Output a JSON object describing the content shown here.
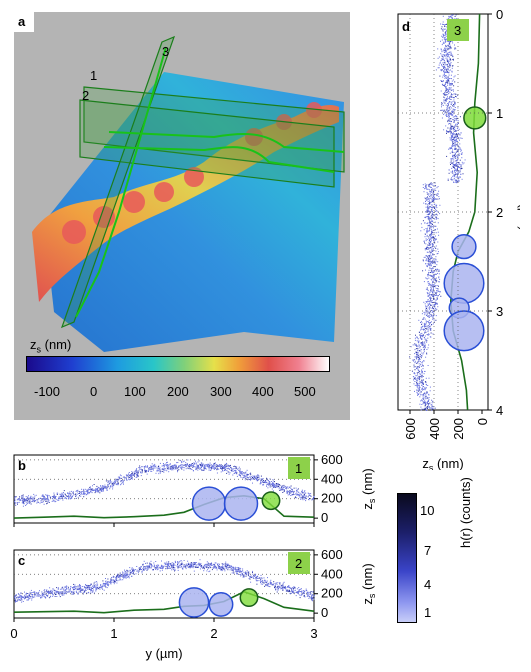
{
  "figure": {
    "panel_a": {
      "letter": "a",
      "plane_labels": [
        "1",
        "2",
        "3"
      ],
      "colorbar_label": "z_s (nm)",
      "colorbar_ticks": [
        "-100",
        "0",
        "100",
        "200",
        "300",
        "400",
        "500"
      ],
      "colorbar_colors": [
        "#1a0a8c",
        "#1f3fd0",
        "#1e9be0",
        "#29c6c8",
        "#7fd07a",
        "#e6e04a",
        "#f0a03a",
        "#e0504a",
        "#f08090",
        "#ffffff"
      ]
    },
    "panel_b": {
      "letter": "b",
      "badge": "1"
    },
    "panel_c": {
      "letter": "c",
      "badge": "2"
    },
    "panel_d": {
      "letter": "d",
      "badge": "3"
    },
    "colorbar_h": {
      "label": "h(r) (counts)",
      "ticks": [
        "10",
        "7",
        "4",
        "1"
      ]
    },
    "accent": {
      "badge_green": "#8dd14a",
      "curve_green": "#1b6e1b",
      "circle_blue": "#aab4f0",
      "circle_edge": "#2a4fd6",
      "green_circle": "#7fdc3a"
    }
  },
  "chart_data": [
    {
      "type": "scatter",
      "panel": "b",
      "xlabel": "y (µm)",
      "ylabel": "z_s (nm)",
      "xlim": [
        0,
        3
      ],
      "ylim": [
        -50,
        650
      ],
      "y_ticks": [
        "600",
        "400",
        "200",
        "0"
      ],
      "x_ticks": [
        "0",
        "1",
        "2",
        "3"
      ],
      "profile": {
        "x": [
          0,
          0.3,
          0.6,
          0.9,
          1.2,
          1.5,
          1.7,
          1.9,
          2.1,
          2.3,
          2.5,
          2.7,
          3.0
        ],
        "y": [
          0,
          10,
          20,
          5,
          15,
          30,
          60,
          140,
          210,
          230,
          200,
          20,
          10
        ]
      },
      "circles": [
        {
          "x": 1.95,
          "y": 150,
          "r": 170,
          "kind": "blue"
        },
        {
          "x": 2.27,
          "y": 150,
          "r": 170,
          "kind": "blue"
        },
        {
          "x": 2.57,
          "y": 180,
          "r": 90,
          "kind": "green"
        }
      ],
      "band_center": [
        180,
        220,
        300,
        500,
        550,
        520,
        350,
        200
      ]
    },
    {
      "type": "scatter",
      "panel": "c",
      "xlabel": "y (µm)",
      "ylabel": "z_s (nm)",
      "xlim": [
        0,
        3
      ],
      "ylim": [
        -50,
        650
      ],
      "y_ticks": [
        "600",
        "400",
        "200",
        "0"
      ],
      "x_ticks": [
        "0",
        "1",
        "2",
        "3"
      ],
      "profile": {
        "x": [
          0,
          0.3,
          0.6,
          0.9,
          1.2,
          1.5,
          1.7,
          1.9,
          2.1,
          2.3,
          2.5,
          2.7,
          3.0
        ],
        "y": [
          10,
          15,
          20,
          5,
          30,
          40,
          70,
          80,
          120,
          220,
          150,
          60,
          20
        ]
      },
      "circles": [
        {
          "x": 1.8,
          "y": 110,
          "r": 150,
          "kind": "blue"
        },
        {
          "x": 2.07,
          "y": 90,
          "r": 120,
          "kind": "blue"
        },
        {
          "x": 2.35,
          "y": 160,
          "r": 90,
          "kind": "green"
        }
      ],
      "band_center": [
        160,
        220,
        280,
        480,
        500,
        480,
        300,
        180
      ]
    },
    {
      "type": "scatter",
      "panel": "d",
      "xlabel": "z_s (nm)",
      "ylabel": "x (µm)",
      "xlim": [
        700,
        -50
      ],
      "ylim": [
        4,
        0
      ],
      "x_ticks": [
        "600",
        "400",
        "200",
        "0"
      ],
      "y_ticks": [
        "0",
        "1",
        "2",
        "3",
        "4"
      ],
      "circles": [
        {
          "x": 60,
          "y": 1.05,
          "r": 0.11,
          "kind": "green"
        },
        {
          "x": 150,
          "y": 2.35,
          "r": 0.12,
          "kind": "blue"
        },
        {
          "x": 150,
          "y": 2.72,
          "r": 0.2,
          "kind": "blue"
        },
        {
          "x": 190,
          "y": 2.97,
          "r": 0.1,
          "kind": "blue"
        },
        {
          "x": 150,
          "y": 3.2,
          "r": 0.2,
          "kind": "blue"
        }
      ]
    }
  ]
}
